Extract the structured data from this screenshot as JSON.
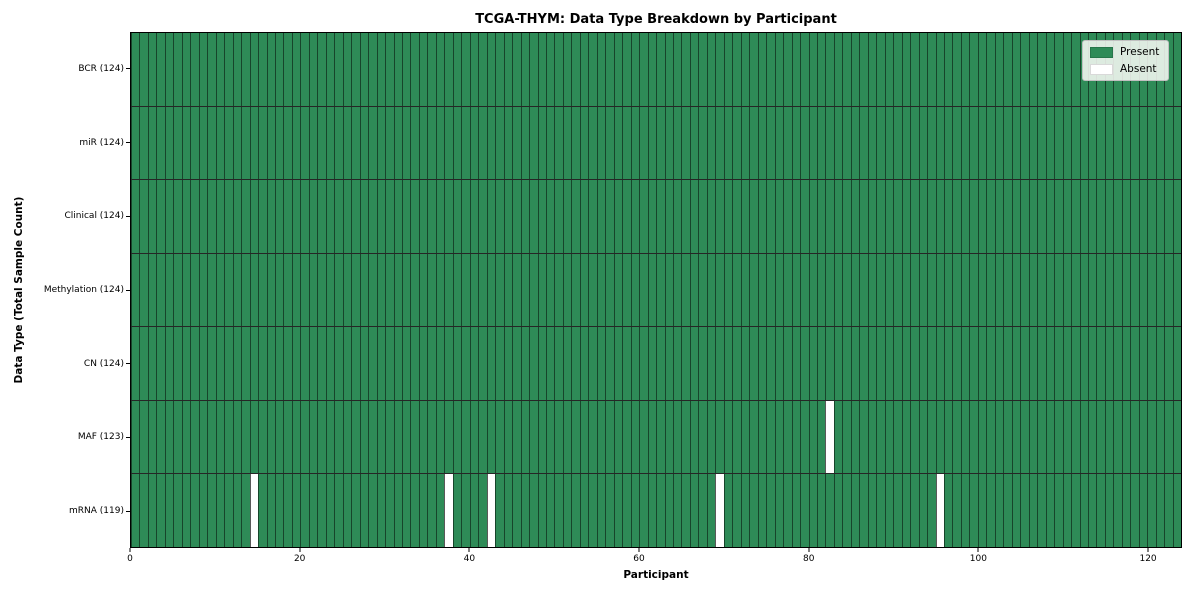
{
  "chart_data": {
    "type": "heatmap",
    "title": "TCGA-THYM: Data Type Breakdown by Participant",
    "xlabel": "Participant",
    "ylabel": "Data Type (Total Sample Count)",
    "x_ticks": [
      0,
      20,
      40,
      60,
      80,
      100,
      120
    ],
    "x_range": [
      0,
      124
    ],
    "n_participants": 124,
    "rows": [
      {
        "label": "BCR (124)",
        "data_type": "BCR",
        "total": 124,
        "absent_participants": []
      },
      {
        "label": "miR (124)",
        "data_type": "miR",
        "total": 124,
        "absent_participants": []
      },
      {
        "label": "Clinical (124)",
        "data_type": "Clinical",
        "total": 124,
        "absent_participants": []
      },
      {
        "label": "Methylation (124)",
        "data_type": "Methylation",
        "total": 124,
        "absent_participants": []
      },
      {
        "label": "CN (124)",
        "data_type": "CN",
        "total": 124,
        "absent_participants": []
      },
      {
        "label": "MAF (123)",
        "data_type": "MAF",
        "total": 123,
        "absent_participants": [
          82
        ]
      },
      {
        "label": "mRNA (119)",
        "data_type": "mRNA",
        "total": 119,
        "absent_participants": [
          14,
          37,
          42,
          69,
          95
        ]
      }
    ],
    "legend": [
      {
        "label": "Present",
        "color": "#2e8b57"
      },
      {
        "label": "Absent",
        "color": "#ffffff"
      }
    ],
    "legend_position": "upper right",
    "colors": {
      "present": "#2e8b57",
      "absent": "#ffffff",
      "cell_edge": "rgba(0,0,0,0.5)",
      "row_divider": "rgba(0,0,0,0.85)",
      "spine": "#000000",
      "background": "#ffffff"
    },
    "grid": false
  }
}
